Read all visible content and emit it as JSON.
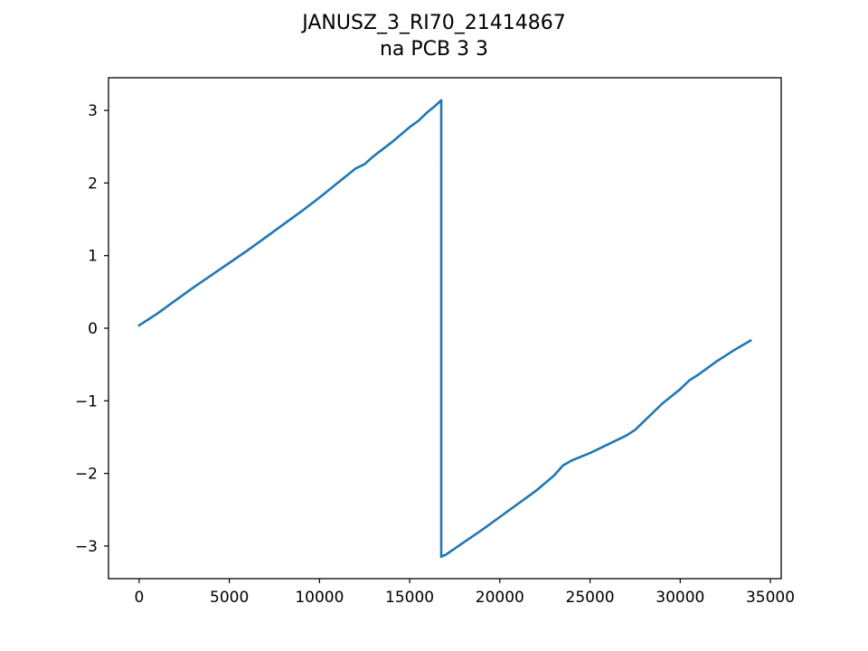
{
  "chart_data": {
    "type": "line",
    "title": "JANUSZ_3_RI70_21414867",
    "subtitle": "na PCB 3 3",
    "xlabel": "",
    "ylabel": "",
    "xlim": [
      -1700,
      35600
    ],
    "ylim": [
      -3.45,
      3.45
    ],
    "x_ticks": [
      0,
      5000,
      10000,
      15000,
      20000,
      25000,
      30000,
      35000
    ],
    "x_tick_labels": [
      "0",
      "5000",
      "10000",
      "15000",
      "20000",
      "25000",
      "30000",
      "35000"
    ],
    "y_ticks": [
      3,
      2,
      1,
      0,
      -1,
      -2,
      -3
    ],
    "y_tick_labels": [
      "3",
      "2",
      "1",
      "0",
      "−1",
      "−2",
      "−3"
    ],
    "grid": false,
    "series": [
      {
        "color": "#1f77b4",
        "x": [
          0,
          1000,
          2000,
          3000,
          4000,
          5000,
          6000,
          7000,
          8000,
          9000,
          10000,
          11000,
          12000,
          12500,
          13000,
          14000,
          15000,
          15500,
          16000,
          16400,
          16750,
          16750,
          16800,
          17000,
          18000,
          19000,
          20000,
          21000,
          22000,
          23000,
          23500,
          24000,
          25000,
          26000,
          27000,
          27500,
          28000,
          29000,
          30000,
          30500,
          31000,
          32000,
          33000,
          33900
        ],
        "y": [
          0.04,
          0.2,
          0.38,
          0.56,
          0.73,
          0.9,
          1.07,
          1.25,
          1.43,
          1.61,
          1.8,
          2.0,
          2.2,
          2.26,
          2.37,
          2.56,
          2.77,
          2.86,
          2.98,
          3.06,
          3.14,
          -3.15,
          -3.14,
          -3.12,
          -2.95,
          -2.78,
          -2.6,
          -2.42,
          -2.24,
          -2.03,
          -1.89,
          -1.82,
          -1.72,
          -1.6,
          -1.48,
          -1.4,
          -1.28,
          -1.04,
          -0.84,
          -0.72,
          -0.64,
          -0.46,
          -0.3,
          -0.17
        ]
      }
    ]
  }
}
